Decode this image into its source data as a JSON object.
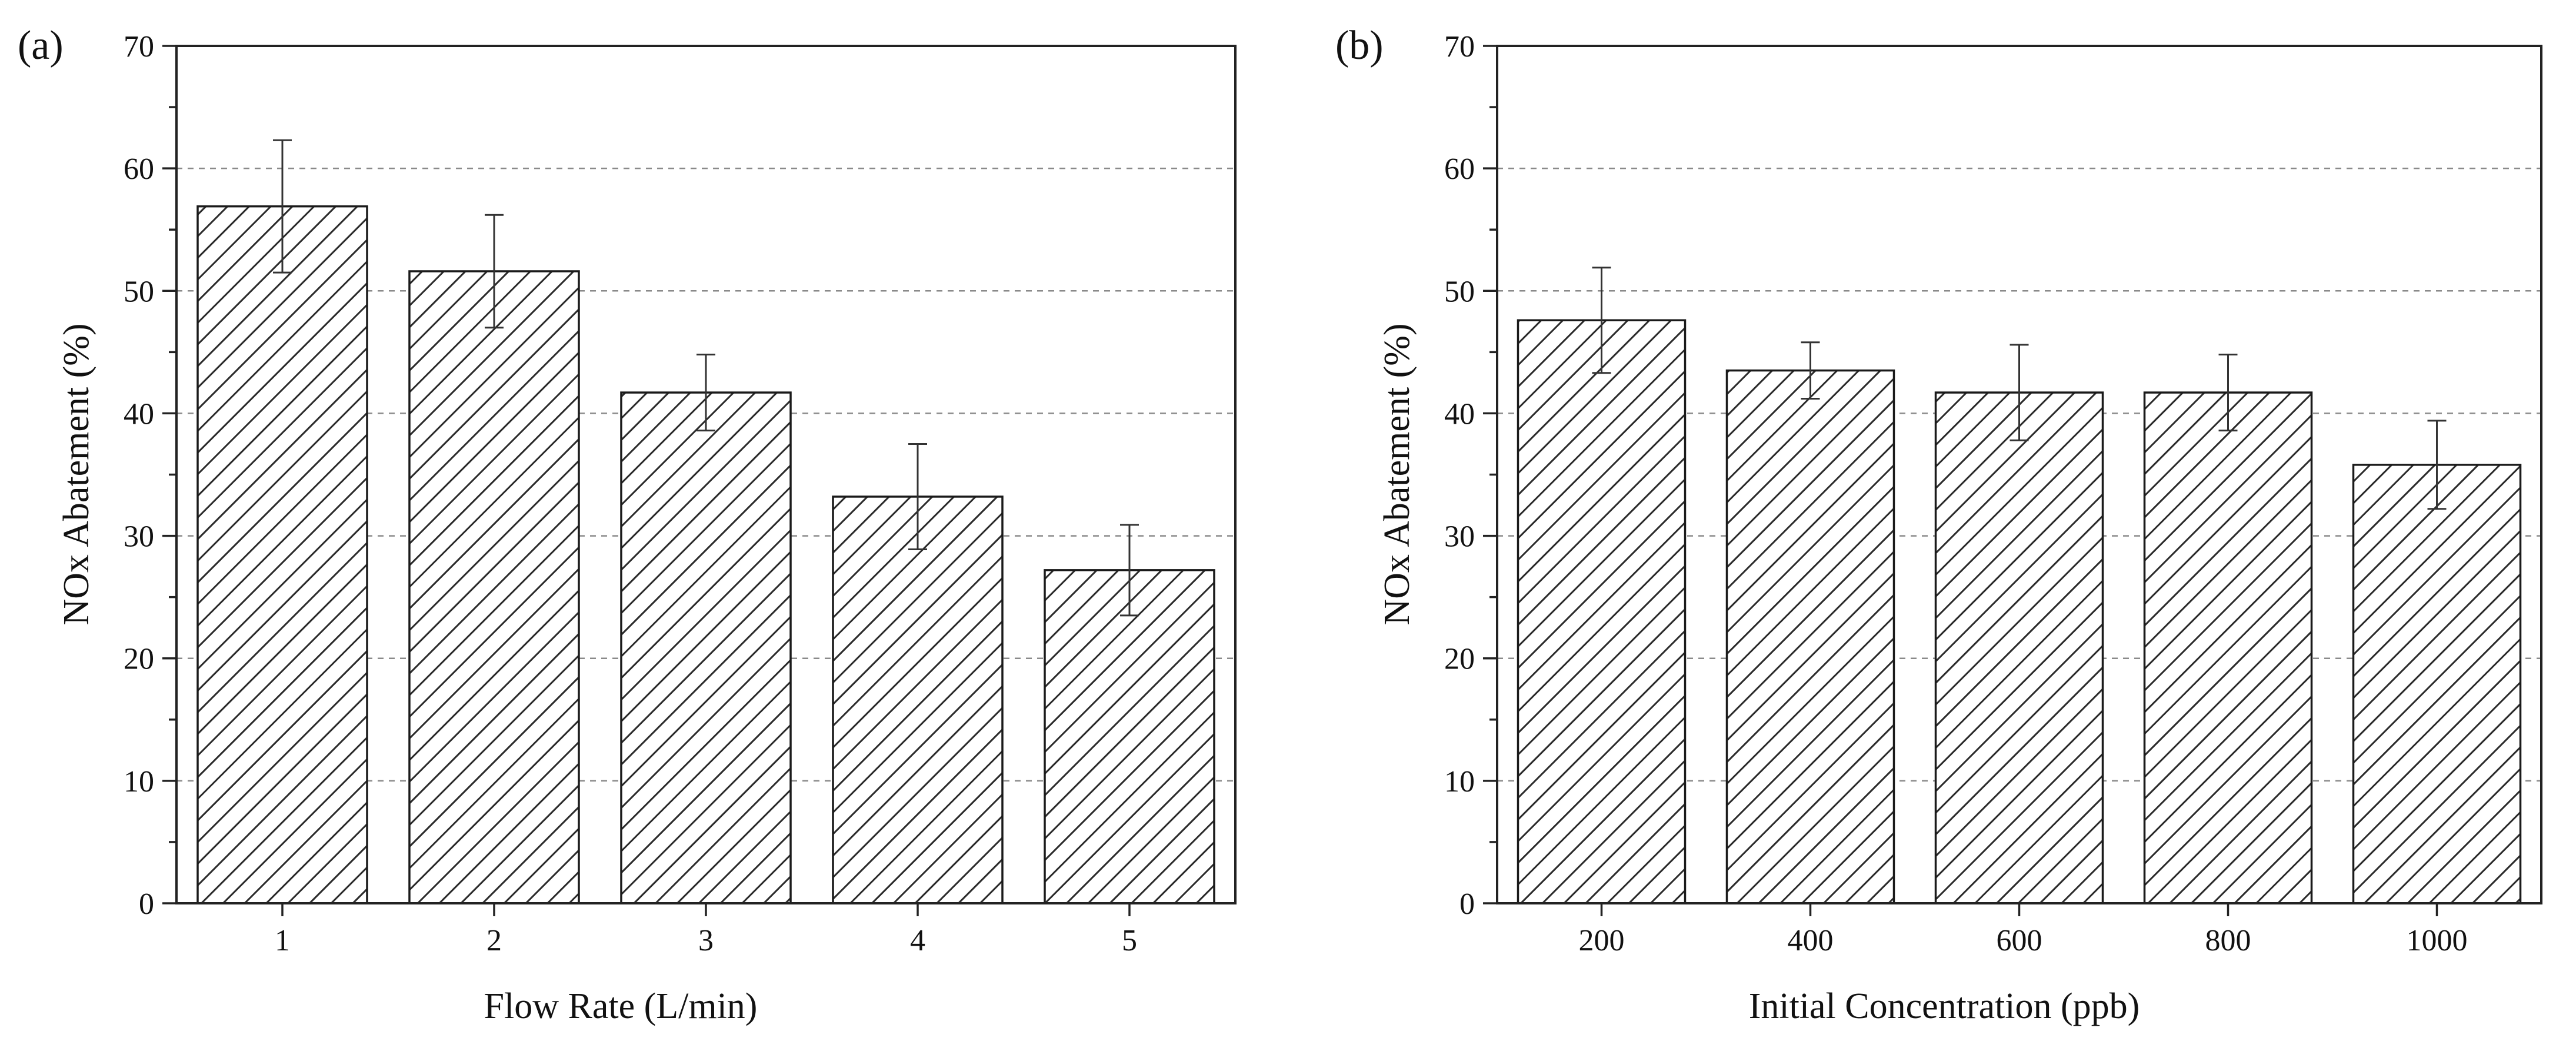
{
  "chart_data": [
    {
      "type": "bar",
      "panel_label": "(a)",
      "title": "",
      "xlabel": "Flow Rate (L/min)",
      "ylabel": "NOx Abatement (%)",
      "ylim": [
        0,
        70
      ],
      "yticks": [
        0,
        10,
        20,
        30,
        40,
        50,
        60,
        70
      ],
      "grid": true,
      "categories": [
        "1",
        "2",
        "3",
        "4",
        "5"
      ],
      "values": [
        56.9,
        51.6,
        41.7,
        33.2,
        27.2
      ],
      "error_upper": [
        62.3,
        56.2,
        44.8,
        37.5,
        30.9
      ],
      "error_lower": [
        51.5,
        47.0,
        38.6,
        28.9,
        23.5
      ]
    },
    {
      "type": "bar",
      "panel_label": "(b)",
      "title": "",
      "xlabel": "Initial Concentration (ppb)",
      "ylabel": "NOx Abatement (%)",
      "ylim": [
        0,
        70
      ],
      "yticks": [
        0,
        10,
        20,
        30,
        40,
        50,
        60,
        70
      ],
      "grid": true,
      "categories": [
        "200",
        "400",
        "600",
        "800",
        "1000"
      ],
      "values": [
        47.6,
        43.5,
        41.7,
        41.7,
        35.8
      ],
      "error_upper": [
        51.9,
        45.8,
        45.6,
        44.8,
        39.4
      ],
      "error_lower": [
        43.3,
        41.2,
        37.8,
        38.6,
        32.2
      ]
    }
  ]
}
